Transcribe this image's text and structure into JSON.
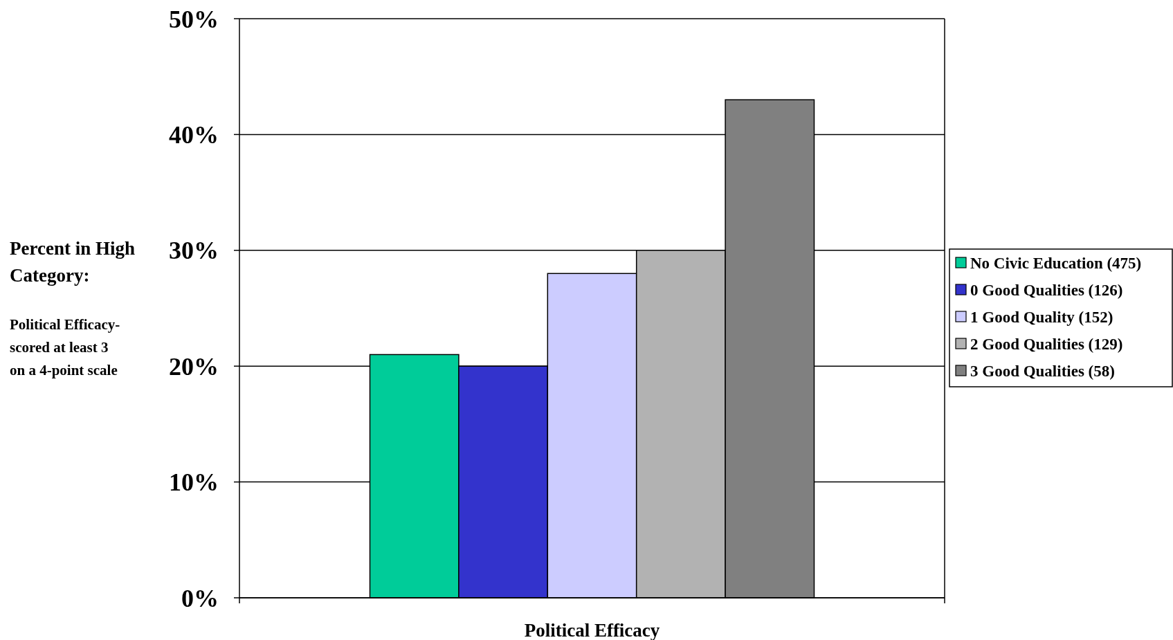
{
  "chart_data": {
    "type": "bar",
    "xlabel": "Political Efficacy",
    "ylabel": "Percent in High Category:",
    "categories": [
      null
    ],
    "series": [
      {
        "name": "No Civic Education (475)",
        "color": "#00cc99",
        "values": [
          21
        ]
      },
      {
        "name": "0 Good Qualities (126)",
        "color": "#3333cc",
        "values": [
          20
        ]
      },
      {
        "name": "1 Good Quality (152)",
        "color": "#ccccff",
        "values": [
          28
        ]
      },
      {
        "name": "2 Good Qualities (129)",
        "color": "#b2b2b2",
        "values": [
          30
        ]
      },
      {
        "name": "3 Good Qualities (58)",
        "color": "#808080",
        "values": [
          43
        ]
      }
    ],
    "ylim": [
      0,
      50
    ],
    "yticks": [
      {
        "value": 0,
        "label": "0%"
      },
      {
        "value": 10,
        "label": "10%"
      },
      {
        "value": 20,
        "label": "20%"
      },
      {
        "value": 30,
        "label": "30%"
      },
      {
        "value": 40,
        "label": "40%"
      },
      {
        "value": 50,
        "label": "50%"
      }
    ],
    "grid": true,
    "legend": "right",
    "annotations": [
      "Political Efficacy-scored at least 3 on a 4-point scale"
    ]
  }
}
